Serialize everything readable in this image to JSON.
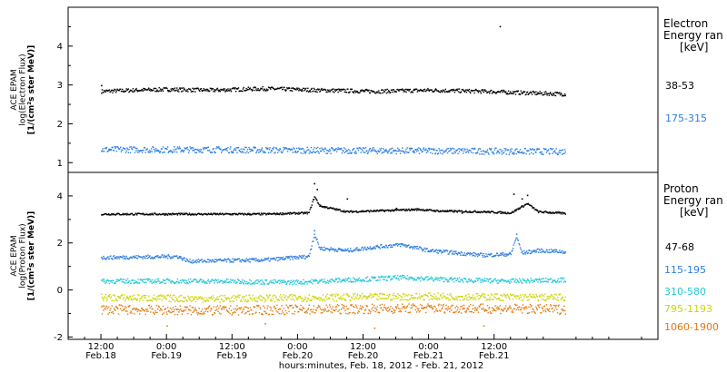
{
  "chart_data": [
    {
      "type": "scatter",
      "panel": "electron",
      "ylabel": [
        "ACE EPAM",
        "log(Electron Flux)",
        "[1/(cm²s ster MeV)]"
      ],
      "ylim": [
        0.75,
        5.0
      ],
      "yticks": [
        1,
        2,
        3,
        4
      ],
      "legend_title": [
        "Electron",
        "Energy ran",
        "[keV]"
      ],
      "series": [
        {
          "name": "38-53",
          "color": "#000000",
          "baseline": [
            [
              0,
              2.85
            ],
            [
              6,
              2.88
            ],
            [
              12,
              2.9
            ],
            [
              20,
              2.88
            ],
            [
              30,
              2.92
            ],
            [
              40,
              2.88
            ],
            [
              50,
              2.85
            ],
            [
              60,
              2.88
            ],
            [
              70,
              2.85
            ],
            [
              80,
              2.8
            ],
            [
              85,
              2.78
            ]
          ],
          "noise": 0.05,
          "spikes": [
            [
              0,
              3.0
            ],
            [
              73,
              4.52
            ]
          ]
        },
        {
          "name": "175-315",
          "color": "#2a7de1",
          "baseline": [
            [
              0,
              1.35
            ],
            [
              20,
              1.35
            ],
            [
              40,
              1.33
            ],
            [
              60,
              1.32
            ],
            [
              85,
              1.3
            ]
          ],
          "noise": 0.08,
          "spikes": []
        }
      ]
    },
    {
      "type": "scatter",
      "panel": "proton",
      "ylabel": [
        "ACE EPAM",
        "log(Proton Flux)",
        "[1/(cm²s ster MeV)]"
      ],
      "ylim": [
        -2.1,
        5.0
      ],
      "yticks": [
        -2,
        0,
        2,
        4
      ],
      "legend_title": [
        "Proton",
        "Energy ran",
        "[keV]"
      ],
      "series": [
        {
          "name": "47-68",
          "color": "#000000",
          "baseline": [
            [
              0,
              3.25
            ],
            [
              30,
              3.25
            ],
            [
              38,
              3.3
            ],
            [
              39,
              4.0
            ],
            [
              40,
              3.6
            ],
            [
              45,
              3.35
            ],
            [
              52,
              3.4
            ],
            [
              58,
              3.45
            ],
            [
              62,
              3.38
            ],
            [
              70,
              3.35
            ],
            [
              75,
              3.3
            ],
            [
              78,
              3.7
            ],
            [
              80,
              3.35
            ],
            [
              85,
              3.28
            ]
          ],
          "noise": 0.04,
          "spikes": [
            [
              39,
              4.55
            ],
            [
              39.5,
              4.3
            ],
            [
              45,
              3.9
            ],
            [
              54,
              3.5
            ],
            [
              63,
              3.4
            ],
            [
              66,
              3.3
            ],
            [
              75.5,
              4.1
            ],
            [
              77,
              3.9
            ],
            [
              78,
              4.05
            ]
          ]
        },
        {
          "name": "115-195",
          "color": "#2a7de1",
          "baseline": [
            [
              0,
              1.4
            ],
            [
              14,
              1.45
            ],
            [
              16,
              1.25
            ],
            [
              30,
              1.3
            ],
            [
              38,
              1.45
            ],
            [
              39,
              2.4
            ],
            [
              40,
              1.8
            ],
            [
              45,
              1.7
            ],
            [
              50,
              1.85
            ],
            [
              55,
              1.95
            ],
            [
              60,
              1.7
            ],
            [
              65,
              1.6
            ],
            [
              70,
              1.5
            ],
            [
              75,
              1.55
            ],
            [
              76,
              2.3
            ],
            [
              77,
              1.6
            ],
            [
              80,
              1.7
            ],
            [
              85,
              1.65
            ]
          ],
          "noise": 0.08,
          "spikes": [
            [
              39,
              2.55
            ],
            [
              76,
              2.4
            ]
          ]
        },
        {
          "name": "310-580",
          "color": "#20c8d8",
          "baseline": [
            [
              0,
              0.4
            ],
            [
              20,
              0.4
            ],
            [
              35,
              0.35
            ],
            [
              45,
              0.45
            ],
            [
              55,
              0.55
            ],
            [
              65,
              0.45
            ],
            [
              75,
              0.4
            ],
            [
              85,
              0.45
            ]
          ],
          "noise": 0.1,
          "spikes": []
        },
        {
          "name": "795-1193",
          "color": "#ccd400",
          "baseline": [
            [
              0,
              -0.3
            ],
            [
              20,
              -0.35
            ],
            [
              40,
              -0.3
            ],
            [
              60,
              -0.25
            ],
            [
              85,
              -0.3
            ]
          ],
          "noise": 0.15,
          "spikes": []
        },
        {
          "name": "1060-1900",
          "color": "#e07a10",
          "baseline": [
            [
              0,
              -0.8
            ],
            [
              20,
              -0.85
            ],
            [
              40,
              -0.8
            ],
            [
              60,
              -0.75
            ],
            [
              85,
              -0.8
            ]
          ],
          "noise": 0.2,
          "spikes": [
            [
              12,
              -1.5
            ],
            [
              30,
              -1.4
            ],
            [
              50,
              -1.6
            ],
            [
              70,
              -1.5
            ]
          ]
        }
      ]
    }
  ],
  "x_axis": {
    "xlim": [
      -6,
      102
    ],
    "data_end": 85,
    "ticks": [
      {
        "x": 0,
        "time": "12:00",
        "date": "Feb.18"
      },
      {
        "x": 12,
        "time": "0:00",
        "date": "Feb.19"
      },
      {
        "x": 24,
        "time": "12:00",
        "date": "Feb.19"
      },
      {
        "x": 36,
        "time": "0:00",
        "date": "Feb.20"
      },
      {
        "x": 48,
        "time": "12:00",
        "date": "Feb.20"
      },
      {
        "x": 60,
        "time": "0:00",
        "date": "Feb.21"
      },
      {
        "x": 72,
        "time": "12:00",
        "date": "Feb.21"
      }
    ],
    "title": "hours:minutes, Feb. 18, 2012 - Feb. 21, 2012"
  }
}
